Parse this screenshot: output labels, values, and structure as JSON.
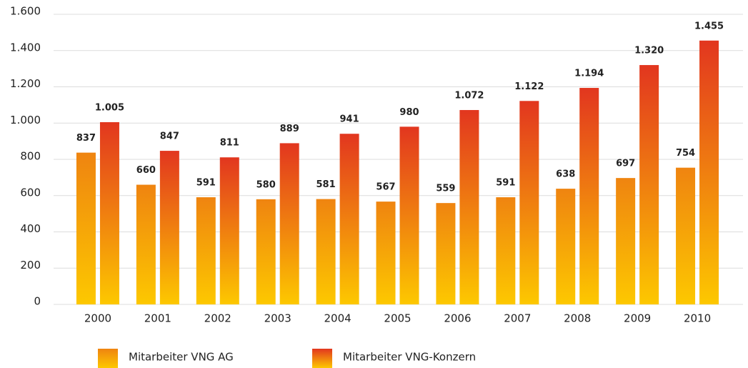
{
  "chart_data": {
    "type": "bar",
    "categories": [
      "2000",
      "2001",
      "2002",
      "2003",
      "2004",
      "2005",
      "2006",
      "2007",
      "2008",
      "2009",
      "2010"
    ],
    "series": [
      {
        "name": "Mitarbeiter VNG AG",
        "color": "#ef8410",
        "values": [
          837,
          660,
          591,
          580,
          581,
          567,
          559,
          591,
          638,
          697,
          754
        ],
        "value_labels": [
          "837",
          "660",
          "591",
          "580",
          "581",
          "567",
          "559",
          "591",
          "638",
          "697",
          "754"
        ]
      },
      {
        "name": "Mitarbeiter VNG-Konzern",
        "color": "#e2361f",
        "values": [
          1005,
          847,
          811,
          889,
          941,
          980,
          1072,
          1122,
          1194,
          1320,
          1455
        ],
        "value_labels": [
          "1.005",
          "847",
          "811",
          "889",
          "941",
          "980",
          "1.072",
          "1.122",
          "1.194",
          "1.320",
          "1.455"
        ]
      }
    ],
    "ylim": [
      0,
      1600
    ],
    "yticks": [
      0,
      200,
      400,
      600,
      800,
      {
        "value": 1000,
        "label": "1.000"
      },
      {
        "value": 1200,
        "label": "1.200"
      },
      {
        "value": 1400,
        "label": "1.400"
      },
      {
        "value": 1600,
        "label": "1.600"
      }
    ],
    "grid": true,
    "legend": "bottom"
  }
}
